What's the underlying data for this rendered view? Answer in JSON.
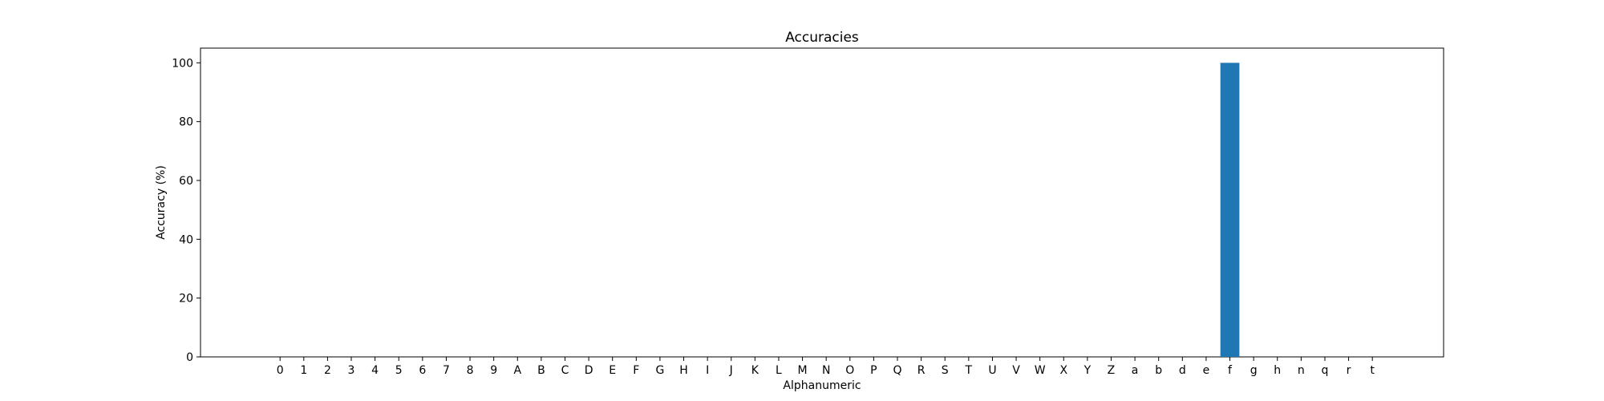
{
  "chart_data": {
    "type": "bar",
    "title": "Accuracies",
    "xlabel": "Alphanumeric",
    "ylabel": "Accuracy (%)",
    "categories": [
      "0",
      "1",
      "2",
      "3",
      "4",
      "5",
      "6",
      "7",
      "8",
      "9",
      "A",
      "B",
      "C",
      "D",
      "E",
      "F",
      "G",
      "H",
      "I",
      "J",
      "K",
      "L",
      "M",
      "N",
      "O",
      "P",
      "Q",
      "R",
      "S",
      "T",
      "U",
      "V",
      "W",
      "X",
      "Y",
      "Z",
      "a",
      "b",
      "d",
      "e",
      "f",
      "g",
      "h",
      "n",
      "q",
      "r",
      "t"
    ],
    "values": [
      0,
      0,
      0,
      0,
      0,
      0,
      0,
      0,
      0,
      0,
      0,
      0,
      0,
      0,
      0,
      0,
      0,
      0,
      0,
      0,
      0,
      0,
      0,
      0,
      0,
      0,
      0,
      0,
      0,
      0,
      0,
      0,
      0,
      0,
      0,
      0,
      0,
      0,
      0,
      0,
      100,
      0,
      0,
      0,
      0,
      0,
      0
    ],
    "ylim": [
      0,
      105
    ],
    "yticks": [
      0,
      20,
      40,
      60,
      80,
      100
    ],
    "grid": false,
    "bar_color": "#1f77b4"
  }
}
